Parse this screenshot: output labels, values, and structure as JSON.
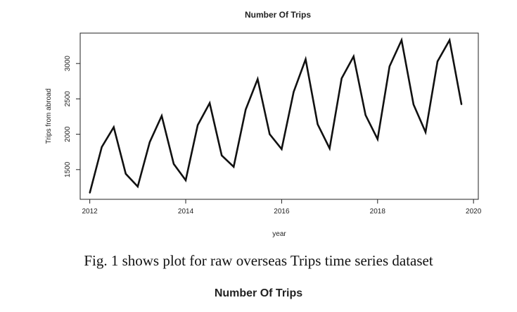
{
  "chart_data": {
    "type": "line",
    "title": "Number Of Trips",
    "xlabel": "year",
    "ylabel": "Trips from abroad",
    "xlim": [
      2011.8,
      2020.1
    ],
    "ylim": [
      1080,
      3430
    ],
    "x_ticks": [
      2012,
      2014,
      2016,
      2018,
      2020
    ],
    "y_ticks": [
      1500,
      2000,
      2500,
      3000
    ],
    "grid": false,
    "series": [
      {
        "x": [
          2012.0,
          2012.25,
          2012.5,
          2012.75,
          2013.0,
          2013.25,
          2013.5,
          2013.75,
          2014.0,
          2014.25,
          2014.5,
          2014.75,
          2015.0,
          2015.25,
          2015.5,
          2015.75,
          2016.0,
          2016.25,
          2016.5,
          2016.75,
          2017.0,
          2017.25,
          2017.5,
          2017.75,
          2018.0,
          2018.25,
          2018.5,
          2018.75,
          2019.0,
          2019.25,
          2019.5,
          2019.75
        ],
        "y": [
          1170,
          1820,
          2100,
          1440,
          1260,
          1890,
          2260,
          1580,
          1350,
          2130,
          2440,
          1700,
          1540,
          2350,
          2780,
          2000,
          1790,
          2600,
          3060,
          2140,
          1800,
          2790,
          3100,
          2270,
          1930,
          2960,
          3330,
          2420,
          2030,
          3030,
          3330,
          2420
        ]
      }
    ]
  },
  "caption": "Fig. 1 shows plot for raw overseas Trips time series dataset",
  "next_title": "Number Of Trips"
}
